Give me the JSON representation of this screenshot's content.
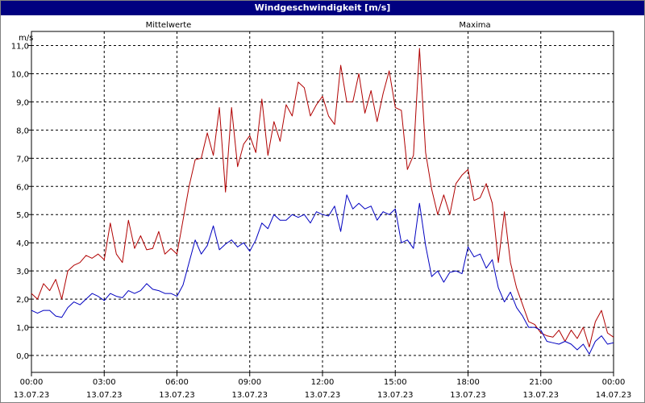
{
  "chart_data": {
    "type": "line",
    "title": "Windgeschwindigkeit [m/s]",
    "ylabel": "m/s",
    "ylim": [
      -0.6,
      11.5
    ],
    "yticks": [
      "0,0",
      "1,0",
      "2,0",
      "3,0",
      "4,0",
      "5,0",
      "6,0",
      "7,0",
      "8,0",
      "9,0",
      "10,0",
      "11,0"
    ],
    "ytick_values": [
      0,
      1,
      2,
      3,
      4,
      5,
      6,
      7,
      8,
      9,
      10,
      11
    ],
    "xlim_hours": [
      0,
      24
    ],
    "xticks": [
      {
        "hours": 0,
        "time": "00:00",
        "date": "13.07.23"
      },
      {
        "hours": 3,
        "time": "03:00",
        "date": "13.07.23"
      },
      {
        "hours": 6,
        "time": "06:00",
        "date": "13.07.23"
      },
      {
        "hours": 9,
        "time": "09:00",
        "date": "13.07.23"
      },
      {
        "hours": 12,
        "time": "12:00",
        "date": "13.07.23"
      },
      {
        "hours": 15,
        "time": "15:00",
        "date": "13.07.23"
      },
      {
        "hours": 18,
        "time": "18:00",
        "date": "13.07.23"
      },
      {
        "hours": 21,
        "time": "21:00",
        "date": "13.07.23"
      },
      {
        "hours": 24,
        "time": "00:00",
        "date": "14.07.23"
      }
    ],
    "grid": true,
    "legend_position": "top",
    "series": [
      {
        "name": "Mittelwerte",
        "color": "#0000c0",
        "x": [
          0,
          0.25,
          0.5,
          0.75,
          1.0,
          1.25,
          1.5,
          1.75,
          2.0,
          2.25,
          2.5,
          2.75,
          3.0,
          3.25,
          3.5,
          3.75,
          4.0,
          4.25,
          4.5,
          4.75,
          5.0,
          5.25,
          5.5,
          5.75,
          6.0,
          6.25,
          6.5,
          6.75,
          7.0,
          7.25,
          7.5,
          7.75,
          8.0,
          8.25,
          8.5,
          8.75,
          9.0,
          9.25,
          9.5,
          9.75,
          10.0,
          10.25,
          10.5,
          10.75,
          11.0,
          11.25,
          11.5,
          11.75,
          12.0,
          12.25,
          12.5,
          12.75,
          13.0,
          13.25,
          13.5,
          13.75,
          14.0,
          14.25,
          14.5,
          14.75,
          15.0,
          15.25,
          15.5,
          15.75,
          16.0,
          16.25,
          16.5,
          16.75,
          17.0,
          17.25,
          17.5,
          17.75,
          18.0,
          18.25,
          18.5,
          18.75,
          19.0,
          19.25,
          19.5,
          19.75,
          20.0,
          20.25,
          20.5,
          20.75,
          21.0,
          21.25,
          21.5,
          21.75,
          22.0,
          22.25,
          22.5,
          22.75,
          23.0,
          23.25,
          23.5,
          23.75,
          24.0
        ],
        "values": [
          1.6,
          1.5,
          1.6,
          1.6,
          1.4,
          1.35,
          1.7,
          1.9,
          1.8,
          2.0,
          2.2,
          2.1,
          1.95,
          2.2,
          2.1,
          2.05,
          2.3,
          2.2,
          2.3,
          2.55,
          2.35,
          2.3,
          2.2,
          2.2,
          2.1,
          2.5,
          3.3,
          4.1,
          3.6,
          3.9,
          4.6,
          3.75,
          3.95,
          4.1,
          3.85,
          4.0,
          3.7,
          4.1,
          4.7,
          4.5,
          5.0,
          4.8,
          4.8,
          5.0,
          4.9,
          5.0,
          4.7,
          5.1,
          5.0,
          4.95,
          5.3,
          4.4,
          5.7,
          5.2,
          5.4,
          5.2,
          5.3,
          4.8,
          5.1,
          5.0,
          5.2,
          4.0,
          4.1,
          3.8,
          5.4,
          3.9,
          2.8,
          3.0,
          2.6,
          2.95,
          3.0,
          2.9,
          3.85,
          3.5,
          3.6,
          3.1,
          3.4,
          2.4,
          1.9,
          2.25,
          1.7,
          1.4,
          1.0,
          1.0,
          0.9,
          0.5,
          0.45,
          0.4,
          0.5,
          0.4,
          0.2,
          0.4,
          0.05,
          0.5,
          0.7,
          0.4,
          0.45
        ]
      },
      {
        "name": "Maxima",
        "color": "#b00000",
        "x": [
          0,
          0.25,
          0.5,
          0.75,
          1.0,
          1.25,
          1.5,
          1.75,
          2.0,
          2.25,
          2.5,
          2.75,
          3.0,
          3.25,
          3.5,
          3.75,
          4.0,
          4.25,
          4.5,
          4.75,
          5.0,
          5.25,
          5.5,
          5.75,
          6.0,
          6.25,
          6.5,
          6.75,
          7.0,
          7.25,
          7.5,
          7.75,
          8.0,
          8.25,
          8.5,
          8.75,
          9.0,
          9.25,
          9.5,
          9.75,
          10.0,
          10.25,
          10.5,
          10.75,
          11.0,
          11.25,
          11.5,
          11.75,
          12.0,
          12.25,
          12.5,
          12.75,
          13.0,
          13.25,
          13.5,
          13.75,
          14.0,
          14.25,
          14.5,
          14.75,
          15.0,
          15.25,
          15.5,
          15.75,
          16.0,
          16.25,
          16.5,
          16.75,
          17.0,
          17.25,
          17.5,
          17.75,
          18.0,
          18.25,
          18.5,
          18.75,
          19.0,
          19.25,
          19.5,
          19.75,
          20.0,
          20.25,
          20.5,
          20.75,
          21.0,
          21.25,
          21.5,
          21.75,
          22.0,
          22.25,
          22.5,
          22.75,
          23.0,
          23.25,
          23.5,
          23.75,
          24.0
        ],
        "values": [
          2.2,
          2.0,
          2.55,
          2.3,
          2.7,
          2.0,
          3.0,
          3.2,
          3.3,
          3.55,
          3.45,
          3.6,
          3.4,
          4.7,
          3.6,
          3.3,
          4.8,
          3.8,
          4.25,
          3.75,
          3.8,
          4.4,
          3.6,
          3.8,
          3.6,
          4.8,
          6.0,
          6.95,
          7.0,
          7.9,
          7.1,
          8.8,
          5.8,
          8.8,
          6.7,
          7.5,
          7.8,
          7.2,
          9.1,
          7.1,
          8.3,
          7.6,
          8.9,
          8.5,
          9.7,
          9.5,
          8.5,
          8.9,
          9.2,
          8.5,
          8.2,
          10.3,
          9.0,
          9.0,
          10.0,
          8.6,
          9.4,
          8.3,
          9.3,
          10.1,
          8.8,
          8.7,
          6.6,
          7.1,
          10.9,
          7.2,
          5.9,
          5.0,
          5.7,
          5.0,
          6.1,
          6.4,
          6.6,
          5.5,
          5.6,
          6.1,
          5.4,
          3.3,
          5.1,
          3.3,
          2.4,
          1.8,
          1.2,
          1.1,
          0.8,
          0.7,
          0.65,
          0.9,
          0.5,
          0.9,
          0.6,
          1.0,
          0.3,
          1.2,
          1.6,
          0.8,
          0.65
        ]
      }
    ]
  }
}
